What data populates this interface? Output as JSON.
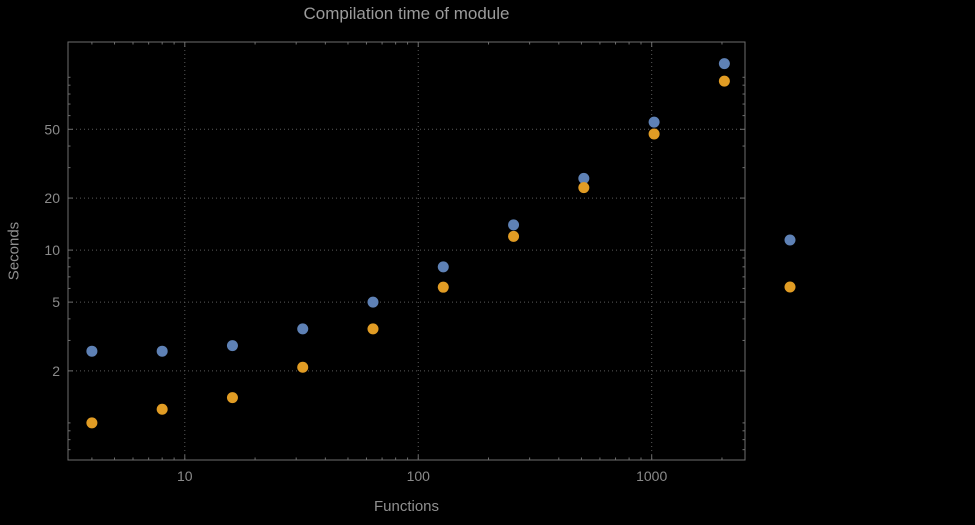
{
  "chart_data": {
    "type": "scatter",
    "title": "Compilation time of module",
    "xlabel": "Functions",
    "ylabel": "Seconds",
    "x_scale": "log",
    "y_scale": "log",
    "x": [
      4,
      8,
      16,
      32,
      64,
      128,
      256,
      512,
      1024,
      2048
    ],
    "series": [
      {
        "name": "series-1-blue",
        "color": "#5e81b5",
        "values": [
          2.6,
          2.6,
          2.8,
          3.5,
          5.0,
          8.0,
          14,
          26,
          55,
          120
        ]
      },
      {
        "name": "series-2-orange",
        "color": "#e19c24",
        "values": [
          1.0,
          1.2,
          1.4,
          2.1,
          3.5,
          6.1,
          12,
          23,
          47,
          95
        ]
      }
    ],
    "x_ticks": [
      10,
      100,
      1000
    ],
    "y_ticks": [
      2,
      5,
      10,
      20,
      50
    ],
    "x_range": [
      3.16,
      2510
    ],
    "y_range": [
      0.61,
      160
    ],
    "grid": "dotted",
    "legend_position": "right-outside"
  },
  "colors": {
    "background": "#000000",
    "frame": "#6e6e6e",
    "grid": "#5a5a5a",
    "title_text": "#9b9b9b",
    "axis_text": "#8f8f8f",
    "tick_text": "#8a8a8a",
    "series_blue": "#5e81b5",
    "series_orange": "#e19c24"
  }
}
